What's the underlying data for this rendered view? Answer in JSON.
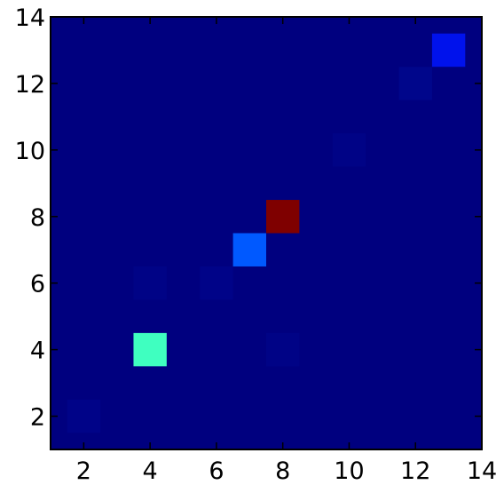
{
  "chart_data": {
    "type": "heatmap",
    "title": "",
    "xlabel": "",
    "ylabel": "",
    "xlim": [
      1,
      14
    ],
    "ylim": [
      1,
      14
    ],
    "grid": false,
    "colormap": "jet",
    "background_color": "#00007f",
    "x_ticks": [
      2,
      4,
      6,
      8,
      10,
      12,
      14
    ],
    "y_ticks": [
      2,
      4,
      6,
      8,
      10,
      12,
      14
    ],
    "x_tick_labels": [
      "2",
      "4",
      "6",
      "8",
      "10",
      "12",
      "14"
    ],
    "y_tick_labels": [
      "2",
      "4",
      "6",
      "8",
      "10",
      "12",
      "14"
    ],
    "cells": [
      {
        "x": 2,
        "y": 2,
        "color": "#000388"
      },
      {
        "x": 4,
        "y": 4,
        "color": "#3fffc0"
      },
      {
        "x": 4,
        "y": 6,
        "color": "#000386"
      },
      {
        "x": 6,
        "y": 6,
        "color": "#000388"
      },
      {
        "x": 7,
        "y": 7,
        "color": "#0059ff"
      },
      {
        "x": 8,
        "y": 4,
        "color": "#000386"
      },
      {
        "x": 8,
        "y": 8,
        "color": "#7f0000"
      },
      {
        "x": 10,
        "y": 10,
        "color": "#000386"
      },
      {
        "x": 12,
        "y": 12,
        "color": "#00068b"
      },
      {
        "x": 13,
        "y": 13,
        "color": "#0012ec"
      }
    ]
  }
}
